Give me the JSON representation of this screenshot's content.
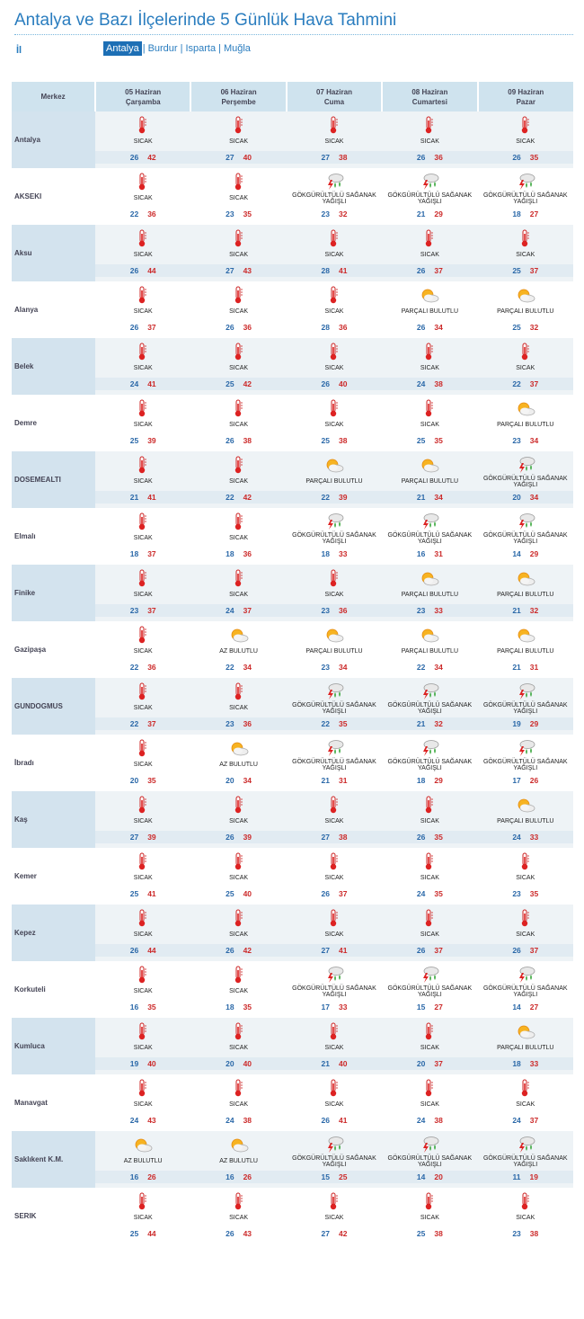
{
  "title": "Antalya ve Bazı İlçelerinde 5 Günlük Hava Tahmini",
  "province_label": "İl",
  "provinces": [
    "Antalya",
    "Burdur",
    "Isparta",
    "Muğla"
  ],
  "active_province": "Antalya",
  "header_first": "Merkez",
  "days": [
    {
      "date": "05 Haziran",
      "weekday": "Çarşamba"
    },
    {
      "date": "06 Haziran",
      "weekday": "Perşembe"
    },
    {
      "date": "07 Haziran",
      "weekday": "Cuma"
    },
    {
      "date": "08 Haziran",
      "weekday": "Cumartesi"
    },
    {
      "date": "09 Haziran",
      "weekday": "Pazar"
    }
  ],
  "conditions": {
    "S": {
      "label": "SICAK",
      "icon": "thermometer-icon"
    },
    "P": {
      "label": "PARÇALI BULUTLU",
      "icon": "partly-cloudy-icon"
    },
    "A": {
      "label": "AZ BULUTLU",
      "icon": "partly-cloudy-icon"
    },
    "G": {
      "label": "GÖKGÜRÜLTÜLÜ SAĞANAK YAĞIŞLI",
      "icon": "thunderstorm-icon"
    }
  },
  "cities": [
    {
      "name": "Antalya",
      "days": [
        [
          "S",
          26,
          42
        ],
        [
          "S",
          27,
          40
        ],
        [
          "S",
          27,
          38
        ],
        [
          "S",
          26,
          36
        ],
        [
          "S",
          26,
          35
        ]
      ]
    },
    {
      "name": "AKSEKI",
      "days": [
        [
          "S",
          22,
          36
        ],
        [
          "S",
          23,
          35
        ],
        [
          "G",
          23,
          32
        ],
        [
          "G",
          21,
          29
        ],
        [
          "G",
          18,
          27
        ]
      ]
    },
    {
      "name": "Aksu",
      "days": [
        [
          "S",
          26,
          44
        ],
        [
          "S",
          27,
          43
        ],
        [
          "S",
          28,
          41
        ],
        [
          "S",
          26,
          37
        ],
        [
          "S",
          25,
          37
        ]
      ]
    },
    {
      "name": "Alanya",
      "days": [
        [
          "S",
          26,
          37
        ],
        [
          "S",
          26,
          36
        ],
        [
          "S",
          28,
          36
        ],
        [
          "P",
          26,
          34
        ],
        [
          "P",
          25,
          32
        ]
      ]
    },
    {
      "name": "Belek",
      "days": [
        [
          "S",
          24,
          41
        ],
        [
          "S",
          25,
          42
        ],
        [
          "S",
          26,
          40
        ],
        [
          "S",
          24,
          38
        ],
        [
          "S",
          22,
          37
        ]
      ]
    },
    {
      "name": "Demre",
      "days": [
        [
          "S",
          25,
          39
        ],
        [
          "S",
          26,
          38
        ],
        [
          "S",
          25,
          38
        ],
        [
          "S",
          25,
          35
        ],
        [
          "P",
          23,
          34
        ]
      ]
    },
    {
      "name": "DOSEMEALTI",
      "days": [
        [
          "S",
          21,
          41
        ],
        [
          "S",
          22,
          42
        ],
        [
          "P",
          22,
          39
        ],
        [
          "P",
          21,
          34
        ],
        [
          "G",
          20,
          34
        ]
      ]
    },
    {
      "name": "Elmalı",
      "days": [
        [
          "S",
          18,
          37
        ],
        [
          "S",
          18,
          36
        ],
        [
          "G",
          18,
          33
        ],
        [
          "G",
          16,
          31
        ],
        [
          "G",
          14,
          29
        ]
      ]
    },
    {
      "name": "Finike",
      "days": [
        [
          "S",
          23,
          37
        ],
        [
          "S",
          24,
          37
        ],
        [
          "S",
          23,
          36
        ],
        [
          "P",
          23,
          33
        ],
        [
          "P",
          21,
          32
        ]
      ]
    },
    {
      "name": "Gazipaşa",
      "days": [
        [
          "S",
          22,
          36
        ],
        [
          "A",
          22,
          34
        ],
        [
          "P",
          23,
          34
        ],
        [
          "P",
          22,
          34
        ],
        [
          "P",
          21,
          31
        ]
      ]
    },
    {
      "name": "GUNDOGMUS",
      "days": [
        [
          "S",
          22,
          37
        ],
        [
          "S",
          23,
          36
        ],
        [
          "G",
          22,
          35
        ],
        [
          "G",
          21,
          32
        ],
        [
          "G",
          19,
          29
        ]
      ]
    },
    {
      "name": "İbradı",
      "days": [
        [
          "S",
          20,
          35
        ],
        [
          "A",
          20,
          34
        ],
        [
          "G",
          21,
          31
        ],
        [
          "G",
          18,
          29
        ],
        [
          "G",
          17,
          26
        ]
      ]
    },
    {
      "name": "Kaş",
      "days": [
        [
          "S",
          27,
          39
        ],
        [
          "S",
          26,
          39
        ],
        [
          "S",
          27,
          38
        ],
        [
          "S",
          26,
          35
        ],
        [
          "P",
          24,
          33
        ]
      ]
    },
    {
      "name": "Kemer",
      "days": [
        [
          "S",
          25,
          41
        ],
        [
          "S",
          25,
          40
        ],
        [
          "S",
          26,
          37
        ],
        [
          "S",
          24,
          35
        ],
        [
          "S",
          23,
          35
        ]
      ]
    },
    {
      "name": "Kepez",
      "days": [
        [
          "S",
          26,
          44
        ],
        [
          "S",
          26,
          42
        ],
        [
          "S",
          27,
          41
        ],
        [
          "S",
          26,
          37
        ],
        [
          "S",
          26,
          37
        ]
      ]
    },
    {
      "name": "Korkuteli",
      "days": [
        [
          "S",
          16,
          35
        ],
        [
          "S",
          18,
          35
        ],
        [
          "G",
          17,
          33
        ],
        [
          "G",
          15,
          27
        ],
        [
          "G",
          14,
          27
        ]
      ]
    },
    {
      "name": "Kumluca",
      "days": [
        [
          "S",
          19,
          40
        ],
        [
          "S",
          20,
          40
        ],
        [
          "S",
          21,
          40
        ],
        [
          "S",
          20,
          37
        ],
        [
          "P",
          18,
          33
        ]
      ]
    },
    {
      "name": "Manavgat",
      "days": [
        [
          "S",
          24,
          43
        ],
        [
          "S",
          24,
          38
        ],
        [
          "S",
          26,
          41
        ],
        [
          "S",
          24,
          38
        ],
        [
          "S",
          24,
          37
        ]
      ]
    },
    {
      "name": "Saklıkent K.M.",
      "days": [
        [
          "A",
          16,
          26
        ],
        [
          "A",
          16,
          26
        ],
        [
          "G",
          15,
          25
        ],
        [
          "G",
          14,
          20
        ],
        [
          "G",
          11,
          19
        ]
      ]
    },
    {
      "name": "SERIK",
      "days": [
        [
          "S",
          25,
          44
        ],
        [
          "S",
          26,
          43
        ],
        [
          "S",
          27,
          42
        ],
        [
          "S",
          25,
          38
        ],
        [
          "S",
          23,
          38
        ]
      ]
    }
  ]
}
